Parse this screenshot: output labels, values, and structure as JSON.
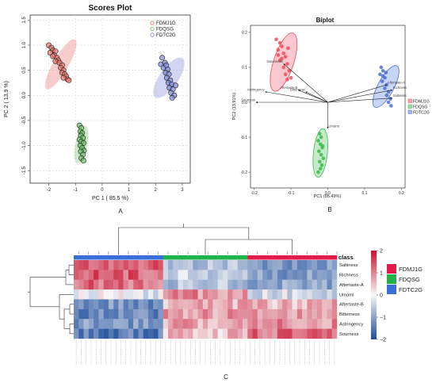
{
  "chart_data": [
    {
      "type": "scatter",
      "panel": "A",
      "title": "Scores Plot",
      "xlabel": "PC 1 ( 85.5 %)",
      "ylabel": "PC 2 ( 13.9 %)",
      "xlim": [
        -2.7,
        3.3
      ],
      "ylim": [
        -1.75,
        1.6
      ],
      "xticks": [
        -2,
        -1,
        0,
        1,
        2,
        3
      ],
      "yticks": [
        -1.5,
        -1.0,
        -0.5,
        0.0,
        0.5,
        1.0,
        1.5
      ],
      "ytick_labels": [
        "-1.5",
        "-1.0",
        "-0.5",
        "0.0",
        "0.5",
        "1.0",
        "1.5"
      ],
      "legend_placement": "top-right",
      "grid": true,
      "series": [
        {
          "name": "FDMJ1G",
          "color": "#e8706a",
          "ellipse": {
            "cx": -1.55,
            "cy": 0.62,
            "rx": 0.78,
            "ry": 0.13,
            "angle": -60
          },
          "points": [
            [
              -2.0,
              1.0
            ],
            [
              -1.9,
              0.95
            ],
            [
              -1.85,
              0.9
            ],
            [
              -1.95,
              0.85
            ],
            [
              -1.75,
              0.88
            ],
            [
              -1.8,
              0.8
            ],
            [
              -1.7,
              0.75
            ],
            [
              -1.85,
              0.78
            ],
            [
              -1.65,
              0.7
            ],
            [
              -1.75,
              0.68
            ],
            [
              -1.6,
              0.65
            ],
            [
              -1.5,
              0.6
            ],
            [
              -1.55,
              0.55
            ],
            [
              -1.45,
              0.5
            ],
            [
              -1.5,
              0.45
            ],
            [
              -1.4,
              0.42
            ],
            [
              -1.35,
              0.38
            ],
            [
              -1.3,
              0.32
            ],
            [
              -1.25,
              0.3
            ],
            [
              -1.45,
              0.35
            ]
          ]
        },
        {
          "name": "FDQSG",
          "color": "#6fbf6a",
          "ellipse": {
            "cx": -0.78,
            "cy": -0.98,
            "rx": 0.52,
            "ry": 0.1,
            "angle": -78
          },
          "points": [
            [
              -0.85,
              -0.6
            ],
            [
              -0.78,
              -0.65
            ],
            [
              -0.82,
              -0.72
            ],
            [
              -0.75,
              -0.75
            ],
            [
              -0.8,
              -0.8
            ],
            [
              -0.72,
              -0.85
            ],
            [
              -0.85,
              -0.88
            ],
            [
              -0.78,
              -0.92
            ],
            [
              -0.7,
              -0.95
            ],
            [
              -0.82,
              -1.0
            ],
            [
              -0.75,
              -1.05
            ],
            [
              -0.68,
              -1.1
            ],
            [
              -0.8,
              -1.12
            ],
            [
              -0.72,
              -1.18
            ],
            [
              -0.78,
              -1.25
            ],
            [
              -0.7,
              -1.3
            ]
          ]
        },
        {
          "name": "FDTC2G",
          "color": "#7b88d6",
          "ellipse": {
            "cx": 2.5,
            "cy": 0.35,
            "rx": 0.65,
            "ry": 0.16,
            "angle": -55
          },
          "points": [
            [
              2.25,
              0.75
            ],
            [
              2.2,
              0.62
            ],
            [
              2.35,
              0.65
            ],
            [
              2.3,
              0.55
            ],
            [
              2.45,
              0.52
            ],
            [
              2.38,
              0.45
            ],
            [
              2.5,
              0.42
            ],
            [
              2.42,
              0.35
            ],
            [
              2.55,
              0.3
            ],
            [
              2.48,
              0.25
            ],
            [
              2.6,
              0.22
            ],
            [
              2.52,
              0.15
            ],
            [
              2.65,
              0.12
            ],
            [
              2.58,
              0.05
            ],
            [
              2.7,
              0.0
            ],
            [
              2.62,
              -0.05
            ],
            [
              2.75,
              0.2
            ],
            [
              2.4,
              0.6
            ]
          ]
        }
      ],
      "panel_label": "A"
    },
    {
      "type": "scatter",
      "panel": "B",
      "title": "Biplot",
      "xlabel": "PC1 (85.49%)",
      "ylabel": "PC2 (13.91%)",
      "xlim": [
        -0.21,
        0.21
      ],
      "ylim": [
        -0.245,
        0.22
      ],
      "xticks": [
        -0.2,
        -0.1,
        0.0,
        0.1,
        0.2
      ],
      "xtick_labels": [
        "-0.2",
        "-0.1",
        "0.0",
        "0.1",
        "0.2"
      ],
      "yticks": [
        -0.2,
        -0.1,
        0.0,
        0.1,
        0.2
      ],
      "ytick_labels": [
        "-0.2",
        "-0.1",
        "0.0",
        "0.1",
        "0.2"
      ],
      "legend_placement": "right",
      "grid": false,
      "series": [
        {
          "name": "FDMJ1G",
          "color": "#ee4a5c",
          "ellipse": {
            "cx": -0.12,
            "cy": 0.115,
            "rx": 0.085,
            "ry": 0.02,
            "angle": -72
          },
          "points": [
            [
              -0.14,
              0.18
            ],
            [
              -0.13,
              0.17
            ],
            [
              -0.125,
              0.16
            ],
            [
              -0.135,
              0.15
            ],
            [
              -0.12,
              0.14
            ],
            [
              -0.115,
              0.13
            ],
            [
              -0.13,
              0.12
            ],
            [
              -0.11,
              0.11
            ],
            [
              -0.12,
              0.1
            ],
            [
              -0.105,
              0.09
            ],
            [
              -0.115,
              0.08
            ],
            [
              -0.1,
              0.07
            ],
            [
              -0.11,
              0.065
            ],
            [
              -0.125,
              0.125
            ],
            [
              -0.135,
              0.135
            ],
            [
              -0.108,
              0.155
            ]
          ]
        },
        {
          "name": "FDQSG",
          "color": "#3cba4e",
          "ellipse": {
            "cx": -0.02,
            "cy": -0.145,
            "rx": 0.068,
            "ry": 0.014,
            "angle": -84
          },
          "points": [
            [
              -0.022,
              -0.09
            ],
            [
              -0.018,
              -0.1
            ],
            [
              -0.026,
              -0.11
            ],
            [
              -0.02,
              -0.12
            ],
            [
              -0.015,
              -0.13
            ],
            [
              -0.024,
              -0.14
            ],
            [
              -0.018,
              -0.15
            ],
            [
              -0.012,
              -0.16
            ],
            [
              -0.022,
              -0.17
            ],
            [
              -0.016,
              -0.18
            ],
            [
              -0.02,
              -0.19
            ],
            [
              -0.026,
              -0.2
            ],
            [
              -0.014,
              -0.125
            ]
          ]
        },
        {
          "name": "FDTC2G",
          "color": "#4a6fd6",
          "ellipse": {
            "cx": 0.158,
            "cy": 0.045,
            "rx": 0.065,
            "ry": 0.016,
            "angle": -62
          },
          "points": [
            [
              0.145,
              0.1
            ],
            [
              0.15,
              0.09
            ],
            [
              0.142,
              0.08
            ],
            [
              0.155,
              0.07
            ],
            [
              0.148,
              0.06
            ],
            [
              0.16,
              0.05
            ],
            [
              0.155,
              0.04
            ],
            [
              0.165,
              0.03
            ],
            [
              0.16,
              0.02
            ],
            [
              0.17,
              0.01
            ],
            [
              0.165,
              0.0
            ],
            [
              0.172,
              -0.01
            ],
            [
              0.15,
              0.075
            ],
            [
              0.158,
              0.085
            ]
          ]
        }
      ],
      "loadings": [
        {
          "label": "Saltiness",
          "x": 0.175,
          "y": 0.012
        },
        {
          "label": "Richness",
          "x": 0.175,
          "y": 0.035
        },
        {
          "label": "Aftertaste-A",
          "x": 0.16,
          "y": 0.05
        },
        {
          "label": "Umami",
          "x": 0.0,
          "y": -0.075
        },
        {
          "label": "Aftertaste-B",
          "x": -0.08,
          "y": 0.035
        },
        {
          "label": "Bitterness",
          "x": -0.06,
          "y": 0.03
        },
        {
          "label": "Astringency",
          "x": -0.17,
          "y": 0.03
        },
        {
          "label": "Sourness",
          "x": -0.195,
          "y": 0.0
        },
        {
          "label": "Sweetness",
          "x": -0.12,
          "y": 0.11
        }
      ],
      "panel_label": "B"
    },
    {
      "type": "heatmap",
      "panel": "C",
      "rows": [
        "Saltiness",
        "Richness",
        "Aftertaste-A",
        "Umami",
        "Aftertaste-B",
        "Bitterness",
        "Astringency",
        "Sourness"
      ],
      "class_legend": {
        "title": "class",
        "entries": [
          {
            "name": "FDMJ1G",
            "color": "#e31a4a"
          },
          {
            "name": "FDQSG",
            "color": "#22b24c"
          },
          {
            "name": "FDTC2G",
            "color": "#3b6fd8"
          }
        ]
      },
      "column_groups": [
        {
          "name": "FDTC2G",
          "color": "#3b6fd8",
          "count": 18
        },
        {
          "name": "FDQSG",
          "color": "#22b24c",
          "count": 17
        },
        {
          "name": "FDMJ1G",
          "color": "#e31a4a",
          "count": 18
        }
      ],
      "group_profiles": {
        "FDTC2G": [
          1.4,
          1.3,
          1.2,
          -0.1,
          -1.2,
          -1.3,
          -1.1,
          -1.5
        ],
        "FDQSG": [
          -0.6,
          -0.5,
          -0.6,
          0.9,
          0.6,
          0.8,
          0.7,
          0.5
        ],
        "FDMJ1G": [
          -1.0,
          -1.0,
          -0.9,
          -0.3,
          0.6,
          0.7,
          0.9,
          1.2
        ]
      },
      "color_scale": {
        "min": -2,
        "max": 2,
        "ticks": [
          2,
          1,
          0,
          -1,
          -2
        ],
        "tick_labels": [
          "2",
          "1",
          "0",
          "−1",
          "−2"
        ],
        "low": "#1f4e9c",
        "mid": "#f7f7f7",
        "high": "#c8102e"
      },
      "panel_label": "C"
    }
  ]
}
